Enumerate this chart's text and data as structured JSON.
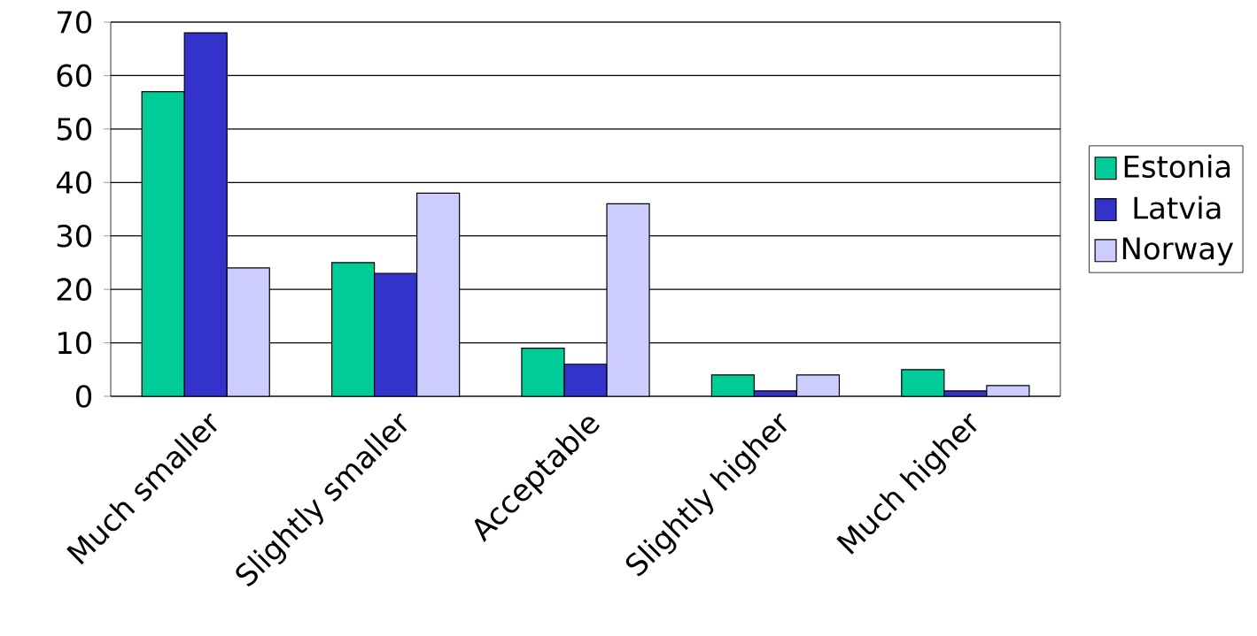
{
  "chart_data": {
    "type": "bar",
    "categories": [
      "Much smaller",
      "Slightly smaller",
      "Acceptable",
      "Slightly higher",
      "Much higher"
    ],
    "series": [
      {
        "name": "Estonia",
        "color": "#00cc99",
        "values": [
          57,
          25,
          9,
          4,
          5
        ]
      },
      {
        "name": "Latvia",
        "color": "#3333cc",
        "values": [
          68,
          23,
          6,
          1,
          1
        ]
      },
      {
        "name": "Norway",
        "color": "#ccccff",
        "values": [
          24,
          38,
          36,
          4,
          2
        ]
      }
    ],
    "ylim": [
      0,
      70
    ],
    "yticks": [
      0,
      10,
      20,
      30,
      40,
      50,
      60,
      70
    ],
    "grid": "y",
    "legend": "right"
  }
}
